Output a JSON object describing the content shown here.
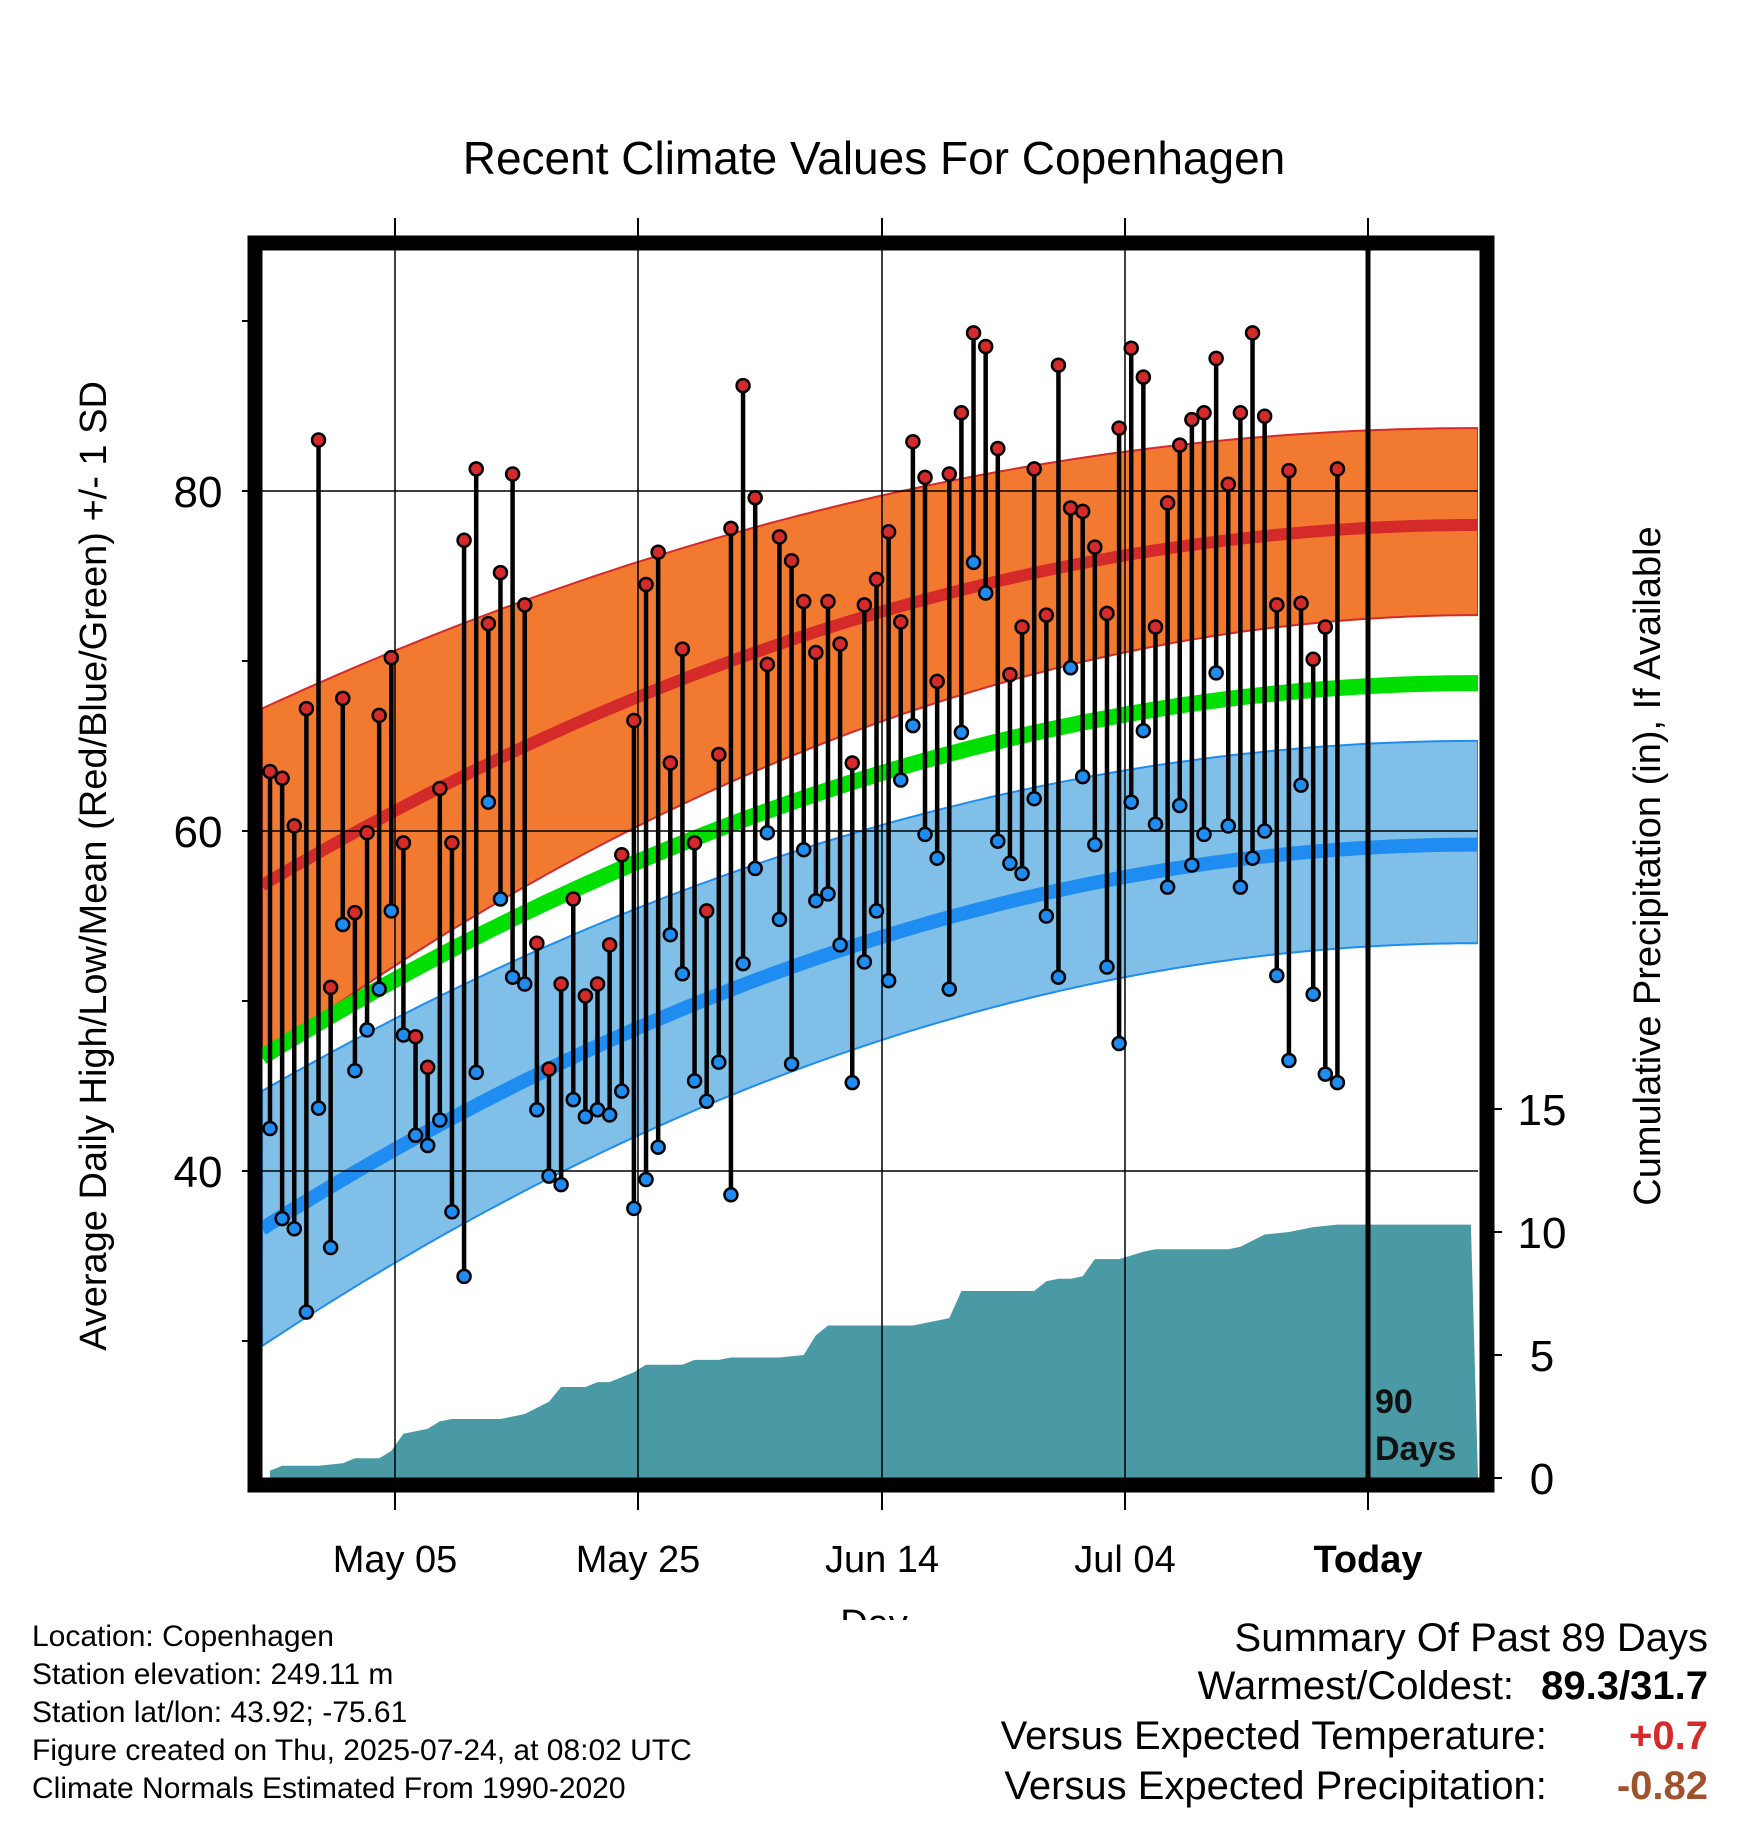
{
  "chart_data": {
    "type": "line",
    "title": "Recent Climate Values For Copenhagen",
    "xlabel": "Day",
    "ylabel_left": "Average Daily High/Low/Mean (Red/Blue/Green) +/- 1 SD",
    "ylabel_right": "Cumulative Precipitation (in), If Available",
    "x_ticks": [
      "May 05",
      "May 25",
      "Jun 14",
      "Jul 04",
      "Today"
    ],
    "y_ticks_left": [
      40,
      60,
      80
    ],
    "y_ticks_right": [
      0,
      5,
      10,
      15
    ],
    "ylim_left": [
      22.5,
      95
    ],
    "ylim_right": [
      0,
      15
    ],
    "days_label": "90 Days",
    "series_colors": {
      "high_mean": "#d42a2a",
      "high_band": "#f27a30",
      "low_mean": "#1e8cf0",
      "low_band": "#80c0e8",
      "mean": "#00e000",
      "precip": "#4a9aa5"
    },
    "normals": {
      "high_mean_start": 56.8,
      "high_mean_end": 78.0,
      "high_band_start": [
        46.7,
        67.2
      ],
      "high_band_end": [
        72.7,
        83.7
      ],
      "mean_start": 46.7,
      "mean_end": 68.7,
      "low_mean_start": 36.6,
      "low_mean_end": 59.2,
      "low_band_start": [
        29.7,
        44.7
      ],
      "low_band_end": [
        53.4,
        65.3
      ]
    },
    "daily_high": [
      63.5,
      63.1,
      60.3,
      67.2,
      83.0,
      50.8,
      67.8,
      55.2,
      59.9,
      66.8,
      70.2,
      59.3,
      47.9,
      46.1,
      62.5,
      59.3,
      77.1,
      81.3,
      72.2,
      75.2,
      81.0,
      73.3,
      53.4,
      46.0,
      51.0,
      56.0,
      50.3,
      51.0,
      53.3,
      58.6,
      66.5,
      74.5,
      76.4,
      64.0,
      70.7,
      59.3,
      55.3,
      64.5,
      77.8,
      86.2,
      79.6,
      69.8,
      77.3,
      75.9,
      73.5,
      70.5,
      73.5,
      71.0,
      64.0,
      73.3,
      74.8,
      77.6,
      72.3,
      82.9,
      80.8,
      68.8,
      81.0,
      84.6,
      89.3,
      88.5,
      82.5,
      69.2,
      72.0,
      81.3,
      72.7,
      87.4,
      79.0,
      78.8,
      76.7,
      72.8,
      83.7,
      88.4,
      86.7,
      72.0,
      79.3,
      82.7,
      84.2,
      84.6,
      87.8,
      80.4,
      84.6,
      89.3,
      84.4,
      73.3,
      81.2,
      73.4,
      70.1,
      72.0,
      81.3
    ],
    "daily_low": [
      42.5,
      37.2,
      36.6,
      31.7,
      43.7,
      35.5,
      54.5,
      45.9,
      48.3,
      50.7,
      55.3,
      48.0,
      42.1,
      41.5,
      43.0,
      37.6,
      33.8,
      45.8,
      61.7,
      56.0,
      51.4,
      51.0,
      43.6,
      39.7,
      39.2,
      44.2,
      43.2,
      43.6,
      43.3,
      44.7,
      37.8,
      39.5,
      41.4,
      53.9,
      51.6,
      45.3,
      44.1,
      46.4,
      38.6,
      52.2,
      57.8,
      59.9,
      54.8,
      46.3,
      58.9,
      55.9,
      56.3,
      53.3,
      45.2,
      52.3,
      55.3,
      51.2,
      63.0,
      66.2,
      59.8,
      58.4,
      50.7,
      65.8,
      75.8,
      74.0,
      59.4,
      58.1,
      57.5,
      61.9,
      55.0,
      51.4,
      69.6,
      63.2,
      59.2,
      52.0,
      47.5,
      61.7,
      65.9,
      60.4,
      56.7,
      61.5,
      58.0,
      59.8,
      69.3,
      60.3,
      56.7,
      58.4,
      60.0,
      51.5,
      46.5,
      62.7,
      50.4,
      45.7,
      45.2
    ],
    "cumulative_precip": [
      [
        0,
        0.3
      ],
      [
        0.5,
        0.4
      ],
      [
        1,
        0.5
      ],
      [
        4,
        0.5
      ],
      [
        6,
        0.6
      ],
      [
        7,
        0.8
      ],
      [
        9,
        0.8
      ],
      [
        10,
        1.1
      ],
      [
        11,
        1.8
      ],
      [
        12,
        1.9
      ],
      [
        13,
        2.0
      ],
      [
        14,
        2.3
      ],
      [
        15,
        2.4
      ],
      [
        19,
        2.4
      ],
      [
        21,
        2.6
      ],
      [
        23,
        3.1
      ],
      [
        24,
        3.7
      ],
      [
        26,
        3.7
      ],
      [
        27,
        3.9
      ],
      [
        28,
        3.9
      ],
      [
        30,
        4.3
      ],
      [
        31,
        4.6
      ],
      [
        34,
        4.6
      ],
      [
        35,
        4.8
      ],
      [
        37,
        4.8
      ],
      [
        38,
        4.9
      ],
      [
        42,
        4.9
      ],
      [
        44,
        5.0
      ],
      [
        45,
        5.8
      ],
      [
        46,
        6.2
      ],
      [
        53,
        6.2
      ],
      [
        55,
        6.4
      ],
      [
        56,
        6.5
      ],
      [
        57,
        7.6
      ],
      [
        60,
        7.6
      ],
      [
        63,
        7.6
      ],
      [
        64,
        8.0
      ],
      [
        65,
        8.1
      ],
      [
        66,
        8.1
      ],
      [
        67,
        8.2
      ],
      [
        68,
        8.9
      ],
      [
        70,
        8.9
      ],
      [
        72,
        9.2
      ],
      [
        73,
        9.3
      ],
      [
        79,
        9.3
      ],
      [
        80,
        9.4
      ],
      [
        82,
        9.9
      ],
      [
        84,
        10.0
      ],
      [
        86,
        10.2
      ],
      [
        88,
        10.3
      ],
      [
        90,
        10.3
      ],
      [
        99,
        10.3
      ]
    ],
    "grid": true
  },
  "info": {
    "location": "Location: Copenhagen",
    "elevation": "Station elevation: 249.11 m",
    "latlon": "Station lat/lon: 43.92; -75.61",
    "created": "Figure created on Thu, 2025-07-24, at 08:02 UTC",
    "normals": "Climate Normals Estimated From 1990-2020"
  },
  "summary": {
    "heading": "Summary Of Past 89 Days",
    "warm_cold_label": "Warmest/Coldest:",
    "warm_cold_value": "89.3/31.7",
    "temp_label": "Versus Expected Temperature:",
    "temp_value": "+0.7",
    "temp_color": "#d42a2a",
    "precip_label": "Versus Expected Precipitation:",
    "precip_value": "-0.82",
    "precip_color": "#a0522d"
  }
}
